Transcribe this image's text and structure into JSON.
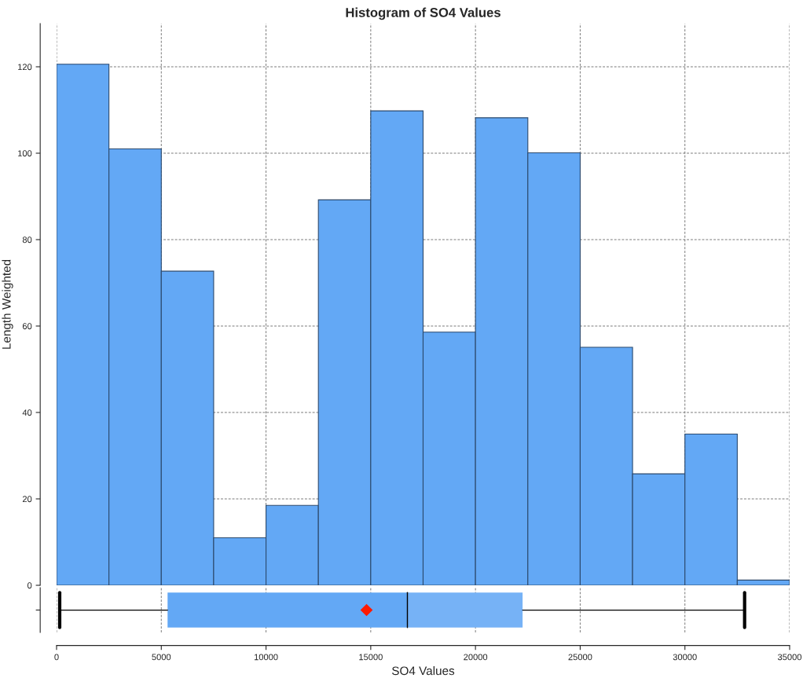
{
  "chart_data": [
    {
      "type": "histogram",
      "title": "Histogram of SO4 Values",
      "ylabel": "Length Weighted",
      "bins": [
        0,
        2500,
        5000,
        7500,
        10000,
        12500,
        15000,
        17500,
        20000,
        22500,
        25000,
        27500,
        30000,
        32500,
        35000
      ],
      "values": [
        120.6,
        101,
        72.7,
        11,
        18.5,
        89.2,
        109.8,
        58.6,
        108.2,
        100.1,
        55.1,
        25.8,
        35,
        1.2
      ],
      "color": "#63a8f5",
      "xlim": [
        0,
        35000
      ],
      "ylim": [
        0,
        130
      ],
      "yticks": [
        0,
        20,
        40,
        60,
        80,
        100,
        120
      ],
      "grid": true,
      "tick_labels": "y"
    },
    {
      "type": "box",
      "xlabel": "SO4 Values",
      "orientation": "horizontal",
      "categories": [
        null
      ],
      "boxes": [
        {
          "low": 150,
          "q1": 5300,
          "median": 16750,
          "q3": 22250,
          "high": 32850,
          "mean": 14800
        }
      ],
      "color": "#63a8f5",
      "xlim": [
        0,
        35000
      ],
      "xticks": [
        0,
        5000,
        10000,
        15000,
        20000,
        25000,
        30000,
        35000
      ],
      "grid": "x",
      "tick_labels": "x"
    }
  ]
}
